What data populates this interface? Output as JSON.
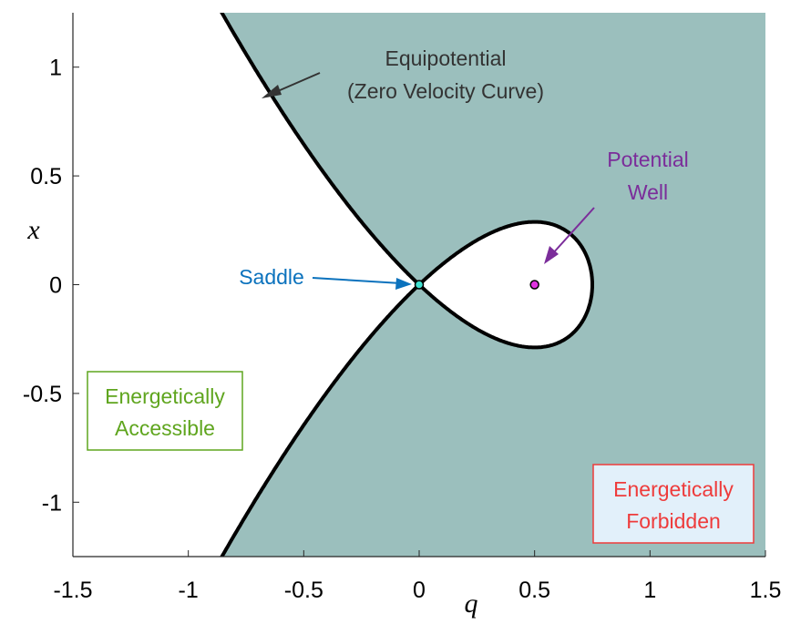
{
  "chart_data": {
    "type": "area",
    "xlabel": "q",
    "ylabel": "x",
    "xlim": [
      -1.5,
      1.5
    ],
    "ylim": [
      -1.25,
      1.25
    ],
    "x_ticks": [
      "-1.5",
      "-1",
      "-0.5",
      "0",
      "0.5",
      "1",
      "1.5"
    ],
    "y_ticks": [
      "-1",
      "-0.5",
      "0",
      "0.5",
      "1"
    ],
    "curve": {
      "name": "Equipotential (Zero Velocity Curve)",
      "energy": 0.0,
      "equation": "x^2 = q^2 - (4/3) q^3",
      "q_min": -1.003,
      "q_max": 0.75
    },
    "points": [
      {
        "name": "Saddle",
        "q": 0,
        "x": 0
      },
      {
        "name": "Potential Well",
        "q": 0.5,
        "x": 0
      }
    ],
    "colors": {
      "forbidden": "#9bbfbd",
      "accessible": "#ffffff",
      "curve": "#000000",
      "saddle_point": "#40e0d0",
      "well_point": "#e033e0",
      "equipotential_text": "#333333",
      "well_text": "#7b2d9a",
      "saddle_text": "#0b72bd",
      "accessible_text": "#5fa51e",
      "forbidden_text": "#ee3b3b"
    }
  },
  "annotations": {
    "equipotential_line1": "Equipotential",
    "equipotential_line2": "(Zero Velocity Curve)",
    "well_line1": "Potential",
    "well_line2": "Well",
    "saddle": "Saddle",
    "accessible_line1": "Energetically",
    "accessible_line2": "Accessible",
    "forbidden_line1": "Energetically",
    "forbidden_line2": "Forbidden"
  }
}
